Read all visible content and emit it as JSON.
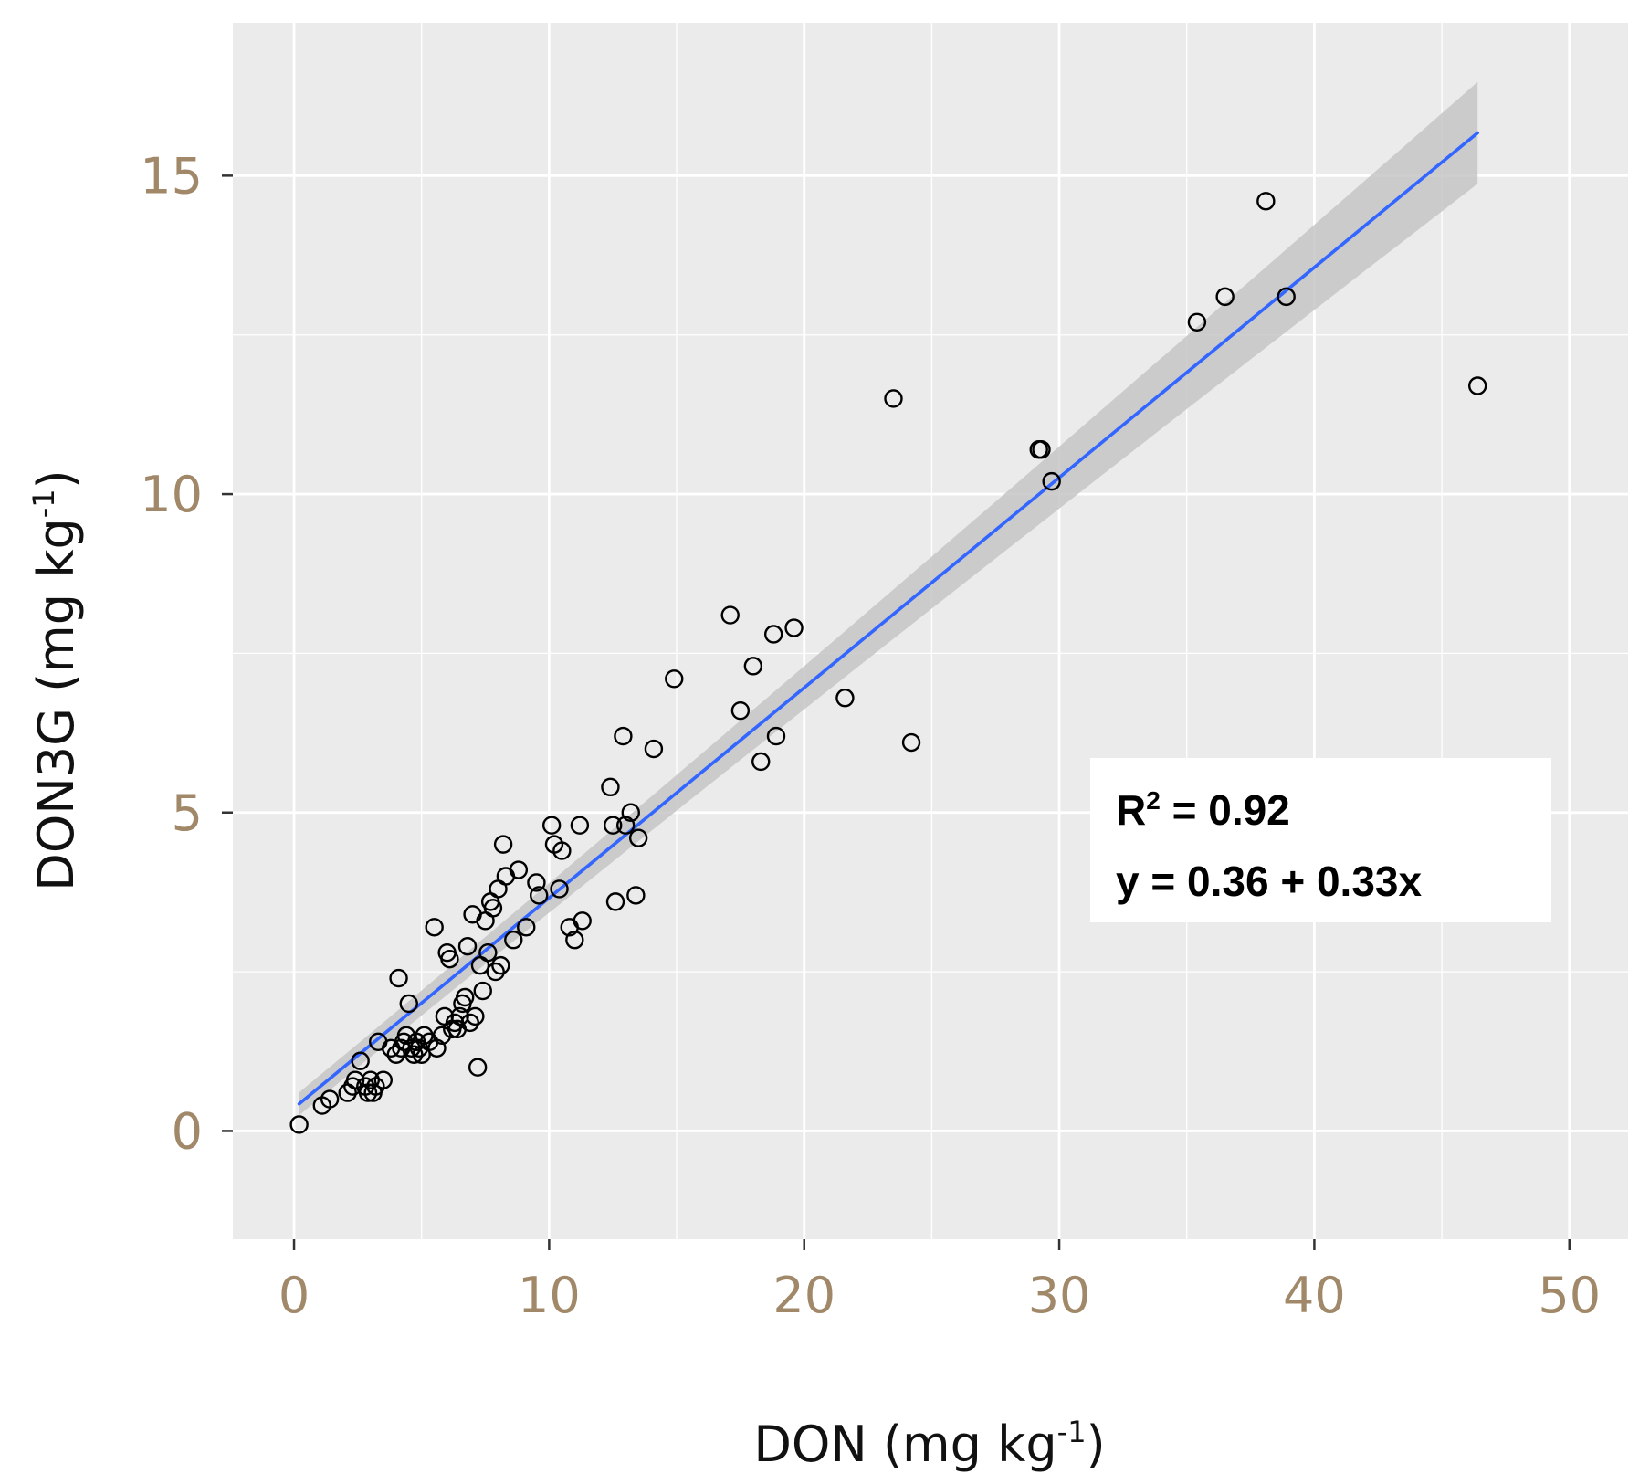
{
  "chart_data": {
    "type": "scatter",
    "title": "",
    "xlabel": {
      "base": "DON (mg kg",
      "sup": "-1",
      "close": ")"
    },
    "ylabel": {
      "base": "DON3G (mg kg",
      "sup": "-1",
      "close": ")"
    },
    "xlim": [
      -2.4,
      52.3
    ],
    "ylim": [
      -1.7,
      17.4
    ],
    "xticks": [
      0,
      10,
      20,
      30,
      40,
      50
    ],
    "yticks": [
      0,
      5,
      10,
      15
    ],
    "x_tick_labels": [
      "0",
      "10",
      "20",
      "30",
      "40",
      "50"
    ],
    "y_tick_labels": [
      "0",
      "5",
      "10",
      "15"
    ],
    "grid": true,
    "colors": {
      "panel": "#ebebeb",
      "grid": "#ffffff",
      "points": "#000000",
      "fit_line": "#3366ff",
      "confidence_band": "#c6c6c6",
      "tick_labels": "#a08868"
    },
    "fit": {
      "intercept": 0.36,
      "slope": 0.33,
      "x_range": [
        0.2,
        46.4
      ],
      "band_halfwidth_at_x0": 0.18,
      "band_halfwidth_at_xmax": 0.8
    },
    "annotation": {
      "r2_prefix": "R",
      "r2_sup": "2",
      "r2_value": " = 0.92",
      "equation": "y = 0.36 + 0.33x",
      "placement": "right-middle"
    },
    "points": [
      [
        0.2,
        0.1
      ],
      [
        1.1,
        0.4
      ],
      [
        1.4,
        0.5
      ],
      [
        2.1,
        0.6
      ],
      [
        2.3,
        0.7
      ],
      [
        2.4,
        0.8
      ],
      [
        2.6,
        1.1
      ],
      [
        2.8,
        0.7
      ],
      [
        2.9,
        0.6
      ],
      [
        3.0,
        0.8
      ],
      [
        3.1,
        0.6
      ],
      [
        3.2,
        0.7
      ],
      [
        3.3,
        1.4
      ],
      [
        3.5,
        0.8
      ],
      [
        3.8,
        1.3
      ],
      [
        4.0,
        1.2
      ],
      [
        4.1,
        2.4
      ],
      [
        4.2,
        1.3
      ],
      [
        4.3,
        1.4
      ],
      [
        4.4,
        1.5
      ],
      [
        4.5,
        2.0
      ],
      [
        4.6,
        1.3
      ],
      [
        4.7,
        1.2
      ],
      [
        4.8,
        1.4
      ],
      [
        4.9,
        1.3
      ],
      [
        5.0,
        1.2
      ],
      [
        5.1,
        1.5
      ],
      [
        5.3,
        1.4
      ],
      [
        5.5,
        3.2
      ],
      [
        5.6,
        1.3
      ],
      [
        5.8,
        1.5
      ],
      [
        5.9,
        1.8
      ],
      [
        6.0,
        2.8
      ],
      [
        6.1,
        2.7
      ],
      [
        6.2,
        1.6
      ],
      [
        6.3,
        1.7
      ],
      [
        6.4,
        1.6
      ],
      [
        6.5,
        1.8
      ],
      [
        6.6,
        2.0
      ],
      [
        6.7,
        2.1
      ],
      [
        6.8,
        2.9
      ],
      [
        6.9,
        1.7
      ],
      [
        7.0,
        3.4
      ],
      [
        7.1,
        1.8
      ],
      [
        7.2,
        1.0
      ],
      [
        7.3,
        2.6
      ],
      [
        7.4,
        2.2
      ],
      [
        7.5,
        3.3
      ],
      [
        7.6,
        2.8
      ],
      [
        7.7,
        3.6
      ],
      [
        7.8,
        3.5
      ],
      [
        7.9,
        2.5
      ],
      [
        8.0,
        3.8
      ],
      [
        8.1,
        2.6
      ],
      [
        8.2,
        4.5
      ],
      [
        8.3,
        4.0
      ],
      [
        8.6,
        3.0
      ],
      [
        8.8,
        4.1
      ],
      [
        9.1,
        3.2
      ],
      [
        9.5,
        3.9
      ],
      [
        9.6,
        3.7
      ],
      [
        10.1,
        4.8
      ],
      [
        10.2,
        4.5
      ],
      [
        10.4,
        3.8
      ],
      [
        10.5,
        4.4
      ],
      [
        10.8,
        3.2
      ],
      [
        11.0,
        3.0
      ],
      [
        11.2,
        4.8
      ],
      [
        11.3,
        3.3
      ],
      [
        12.4,
        5.4
      ],
      [
        12.5,
        4.8
      ],
      [
        12.6,
        3.6
      ],
      [
        12.9,
        6.2
      ],
      [
        13.0,
        4.8
      ],
      [
        13.2,
        5.0
      ],
      [
        13.4,
        3.7
      ],
      [
        13.5,
        4.6
      ],
      [
        14.1,
        6.0
      ],
      [
        14.9,
        7.1
      ],
      [
        17.1,
        8.1
      ],
      [
        17.5,
        6.6
      ],
      [
        18.0,
        7.3
      ],
      [
        18.3,
        5.8
      ],
      [
        18.8,
        7.8
      ],
      [
        18.9,
        6.2
      ],
      [
        19.6,
        7.9
      ],
      [
        21.6,
        6.8
      ],
      [
        23.5,
        11.5
      ],
      [
        24.2,
        6.1
      ],
      [
        29.2,
        10.7
      ],
      [
        29.3,
        10.7
      ],
      [
        29.7,
        10.2
      ],
      [
        35.4,
        12.7
      ],
      [
        36.5,
        13.1
      ],
      [
        38.1,
        14.6
      ],
      [
        38.9,
        13.1
      ],
      [
        46.4,
        11.7
      ]
    ]
  }
}
